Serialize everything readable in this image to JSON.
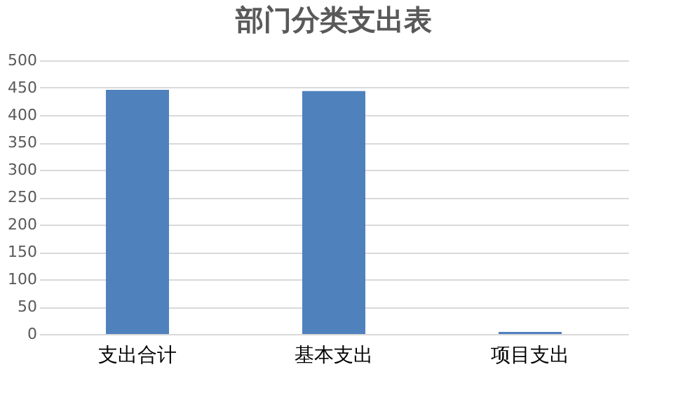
{
  "chart_data": {
    "type": "bar",
    "title": "部门分类支出表",
    "categories": [
      "支出合计",
      "基本支出",
      "项目支出"
    ],
    "values": [
      446,
      444,
      4
    ],
    "color": "#4f81bd",
    "ylim": [
      0,
      500
    ],
    "yticks": [
      0,
      50,
      100,
      150,
      200,
      250,
      300,
      350,
      400,
      450,
      500
    ],
    "grid": "y"
  }
}
